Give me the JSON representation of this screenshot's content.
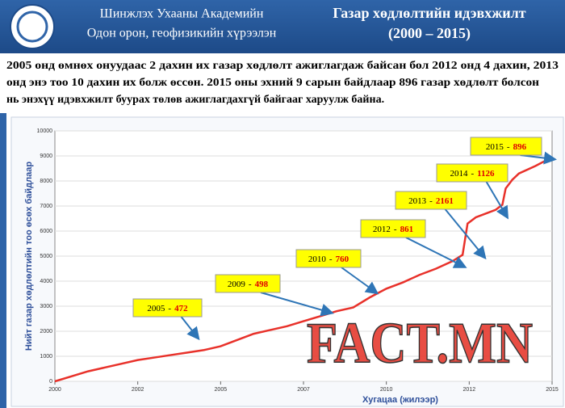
{
  "header": {
    "institution": [
      "Шинжлэх Ухааны Академийн",
      "Одон орон, геофизикийн хүрээлэн"
    ],
    "title": [
      "Газар хөдлөлтийн идэвхжилт",
      "(2000 – 2015)"
    ]
  },
  "paragraph": [
    "2005 онд өмнөх онуудаас 2 дахин их газар хөдлөлт ажиглагдаж байсан бол 2012 онд 4 дахин, 2013",
    "онд энэ тоо 10 дахин их болж өссөн. 2015 оны эхний 9 сарын байдлаар 896 газар хөдлөлт болсон",
    "нь энэхүү идэвхжилт буурах төлөв ажиглагдахгүй байгааг харуулж байна."
  ],
  "chart_data": {
    "type": "line",
    "x_label": "Хугацаа (жилээр)",
    "y_label": "Нийт газар хөдлөлтийн тоо өсөх байдлаар",
    "x": [
      2000,
      2000.5,
      2001,
      2001.5,
      2002,
      2002.5,
      2003,
      2003.5,
      2004,
      2004.5,
      2005,
      2005.5,
      2006,
      2006.5,
      2007,
      2007.5,
      2008,
      2008.5,
      2009,
      2009.5,
      2010,
      2010.5,
      2011,
      2011.5,
      2012,
      2012.3,
      2012.45,
      2012.7,
      2013,
      2013.3,
      2013.5,
      2013.6,
      2013.8,
      2014,
      2014.5,
      2015
    ],
    "series": [
      {
        "color": "#e8312a",
        "values": [
          0,
          200,
          400,
          550,
          700,
          850,
          950,
          1050,
          1150,
          1250,
          1400,
          1650,
          1900,
          2050,
          2200,
          2400,
          2600,
          2800,
          2950,
          3350,
          3700,
          3950,
          4250,
          4500,
          4800,
          5050,
          6300,
          6550,
          6700,
          6850,
          7050,
          7700,
          8050,
          8300,
          8600,
          8950
        ]
      }
    ],
    "xlim": [
      2000,
      2015
    ],
    "xticks": [
      2000,
      {
        "value": 2002.5,
        "label": "2002"
      },
      2005,
      {
        "value": 2007.5,
        "label": "2007"
      },
      2010,
      {
        "value": 2012.5,
        "label": "2012"
      },
      2015
    ],
    "ylim": [
      0,
      10000
    ],
    "yticks": [
      0,
      1000,
      2000,
      3000,
      4000,
      5000,
      6000,
      7000,
      8000,
      9000,
      10000
    ],
    "grid": true,
    "separator": "-",
    "annotations": [
      {
        "year": "2005",
        "count": 472
      },
      {
        "year": "2009",
        "count": 498
      },
      {
        "year": "2010",
        "count": 760
      },
      {
        "year": "2012",
        "count": 861
      },
      {
        "year": "2013",
        "count": 2161
      },
      {
        "year": "2014",
        "count": 1126
      },
      {
        "year": "2015",
        "count": 896
      }
    ],
    "watermark": "FACT.MN"
  }
}
